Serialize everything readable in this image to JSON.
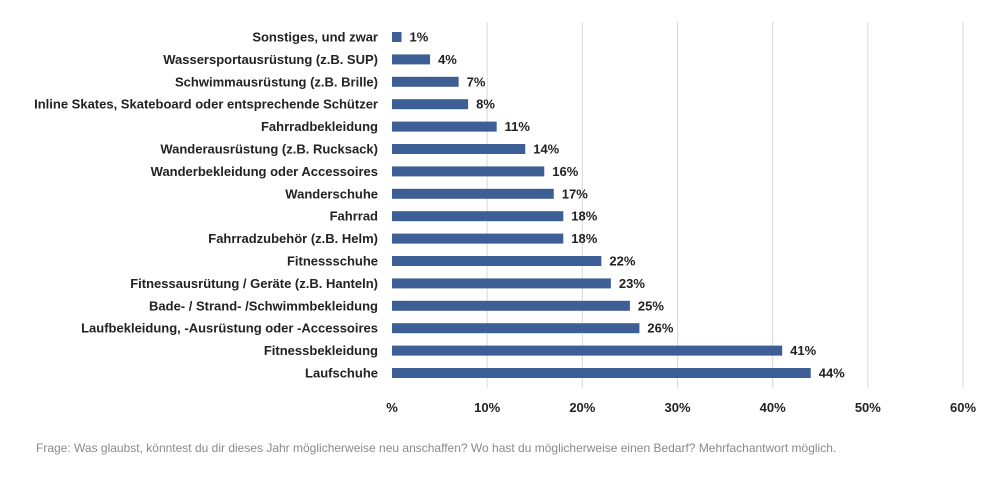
{
  "chart_data": {
    "type": "bar",
    "orientation": "horizontal",
    "categories": [
      "Sonstiges, und zwar",
      "Wassersportausrüstung (z.B. SUP)",
      "Schwimmausrüstung (z.B. Brille)",
      "Inline Skates, Skateboard oder entsprechende Schützer",
      "Fahrradbekleidung",
      "Wanderausrüstung (z.B. Rucksack)",
      "Wanderbekleidung oder Accessoires",
      "Wanderschuhe",
      "Fahrrad",
      "Fahrradzubehör (z.B. Helm)",
      "Fitnessschuhe",
      "Fitnessausrütung / Geräte (z.B. Hanteln)",
      "Bade- / Strand- /Schwimmbekleidung",
      "Laufbekleidung, -Ausrüstung oder -Accessoires",
      "Fitnessbekleidung",
      "Laufschuhe"
    ],
    "values": [
      1,
      4,
      7,
      8,
      11,
      14,
      16,
      17,
      18,
      18,
      22,
      23,
      25,
      26,
      41,
      44
    ],
    "value_labels": [
      "1%",
      "4%",
      "7%",
      "8%",
      "11%",
      "14%",
      "16%",
      "17%",
      "18%",
      "18%",
      "22%",
      "23%",
      "25%",
      "26%",
      "41%",
      "44%"
    ],
    "xlim": [
      0,
      60
    ],
    "x_ticks": [
      0,
      10,
      20,
      30,
      40,
      50,
      60
    ],
    "x_tick_labels": [
      "%",
      "10%",
      "20%",
      "30%",
      "40%",
      "50%",
      "60%"
    ],
    "grid": "vertical",
    "bar_color": "#3d5f96",
    "gridline_color": "#d9d9d9"
  },
  "footnote": "Frage: Was glaubst, könntest du dir dieses Jahr möglicherweise neu anschaffen? Wo hast du möglicherweise einen Bedarf? Mehrfachantwort möglich."
}
